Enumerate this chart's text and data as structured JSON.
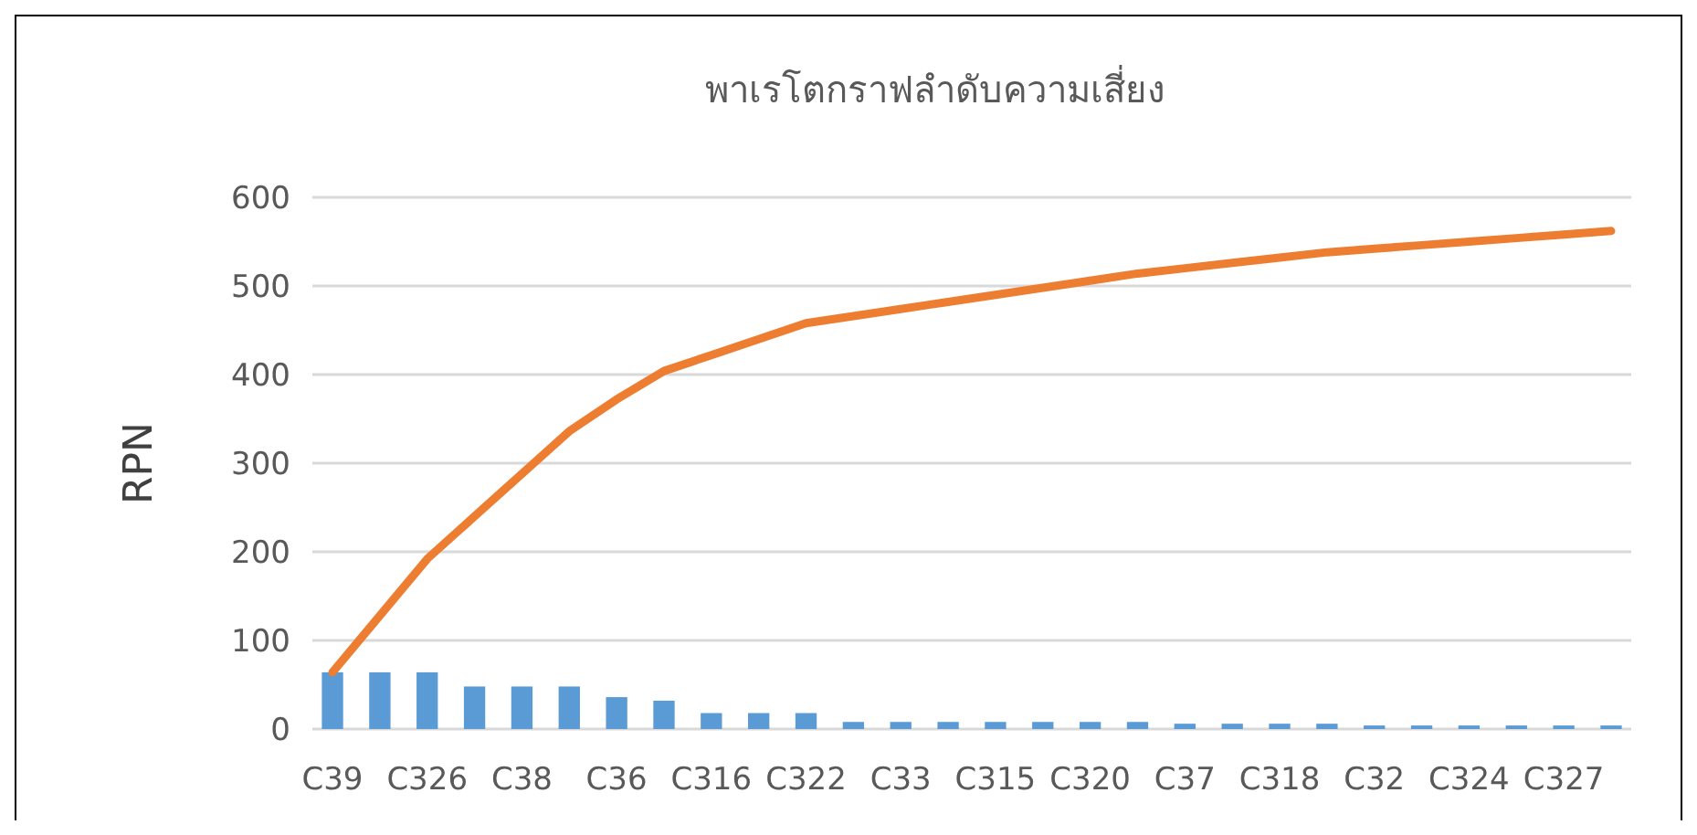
{
  "chart_data": {
    "type": "bar",
    "title": "พาเรโตกราฟลำดับความเสี่ยง",
    "ylabel": "RPN",
    "categories": [
      "C39",
      null,
      "C326",
      null,
      "C38",
      null,
      "C36",
      null,
      "C316",
      null,
      "C322",
      null,
      "C33",
      null,
      "C315",
      null,
      "C320",
      null,
      "C37",
      null,
      "C318",
      null,
      "C32",
      null,
      "C324",
      null,
      "C327",
      null
    ],
    "series": [
      {
        "color": "#5b9bd5",
        "values": [
          64,
          64,
          64,
          48,
          48,
          48,
          36,
          32,
          18,
          18,
          18,
          8,
          8,
          8,
          8,
          8,
          8,
          8,
          6,
          6,
          6,
          6,
          4,
          4,
          4,
          4,
          4,
          4
        ]
      },
      {
        "type": "line",
        "color": "#ed7d31",
        "values": [
          64,
          128,
          192,
          240,
          288,
          336,
          372,
          404,
          422,
          440,
          458,
          466,
          474,
          482,
          490,
          498,
          506,
          514,
          520,
          526,
          532,
          538,
          542,
          546,
          550,
          554,
          558,
          562
        ]
      }
    ],
    "ylim": [
      0,
      600
    ],
    "yticks": [
      0,
      100,
      200,
      300,
      400,
      500,
      600
    ],
    "grid": "y",
    "marker": "none"
  }
}
